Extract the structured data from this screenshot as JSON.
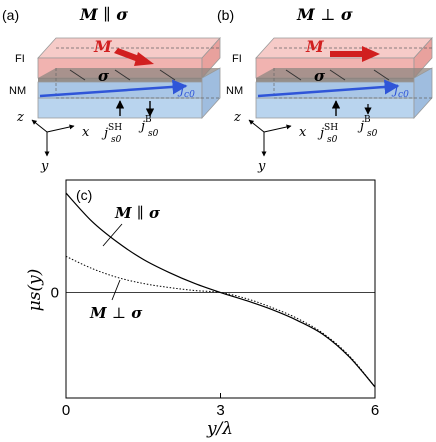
{
  "colors": {
    "fi_layer": "#f1b3b0",
    "nm_layer": "#b9d4ee",
    "spin_layer": "#8f8781",
    "magnetization": "#d11f1f",
    "current": "#2f55d8",
    "curve": "#000000"
  },
  "panel_a": {
    "tag": "(a)",
    "title_var": "M",
    "title_rel": "∥",
    "title_sym": "σ",
    "fi_label": "FI",
    "nm_label": "NM",
    "m_label": "M",
    "sigma_label": "σ",
    "jc_main": "j",
    "jc_sub": "c0",
    "jsh_main": "j",
    "jsh_sup": "SH",
    "jsh_sub": "s0",
    "jb_main": "j",
    "jb_sup": "B",
    "jb_sub": "s0",
    "axis_z": "z",
    "axis_x": "x",
    "axis_y": "y"
  },
  "panel_b": {
    "tag": "(b)",
    "title_var": "M",
    "title_rel": "⊥",
    "title_sym": "σ",
    "fi_label": "FI",
    "nm_label": "NM",
    "m_label": "M",
    "sigma_label": "σ",
    "jc_main": "j",
    "jc_sub": "c0",
    "jsh_main": "j",
    "jsh_sup": "SH",
    "jsh_sub": "s0",
    "jb_main": "j",
    "jb_sup": "B",
    "jb_sub": "s0",
    "axis_z": "z",
    "axis_x": "x",
    "axis_y": "y"
  },
  "chart_data": {
    "type": "line",
    "panel_tag": "(c)",
    "xlabel": "y/λ",
    "ylabel": "μs(y)",
    "xlim": [
      0,
      6
    ],
    "ylim": [
      -1.05,
      1.12
    ],
    "xticks": [
      "0",
      "3",
      "6"
    ],
    "yticks": [
      "0"
    ],
    "grid": false,
    "series": [
      {
        "name": "M ∥ σ",
        "style": "solid",
        "x": [
          0,
          0.5,
          1,
          1.5,
          2,
          2.5,
          3,
          3.5,
          4,
          4.5,
          5,
          5.5,
          6
        ],
        "y": [
          0.99,
          0.71,
          0.5,
          0.33,
          0.2,
          0.09,
          0.0,
          -0.08,
          -0.17,
          -0.28,
          -0.42,
          -0.64,
          -0.94
        ]
      },
      {
        "name": "M ⊥ σ",
        "style": "dotted",
        "x": [
          0,
          0.5,
          1,
          1.5,
          2,
          2.5,
          3,
          3.5,
          4,
          4.5,
          5,
          5.5,
          6
        ],
        "y": [
          0.36,
          0.24,
          0.15,
          0.09,
          0.05,
          0.02,
          0.0,
          -0.06,
          -0.15,
          -0.26,
          -0.41,
          -0.63,
          -0.94
        ]
      }
    ],
    "annotations": [
      {
        "text_var": "M",
        "text_rel": "∥",
        "text_sym": "σ",
        "series": "M ∥ σ"
      },
      {
        "text_var": "M",
        "text_rel": "⊥",
        "text_sym": "σ",
        "series": "M ⊥ σ"
      }
    ]
  }
}
